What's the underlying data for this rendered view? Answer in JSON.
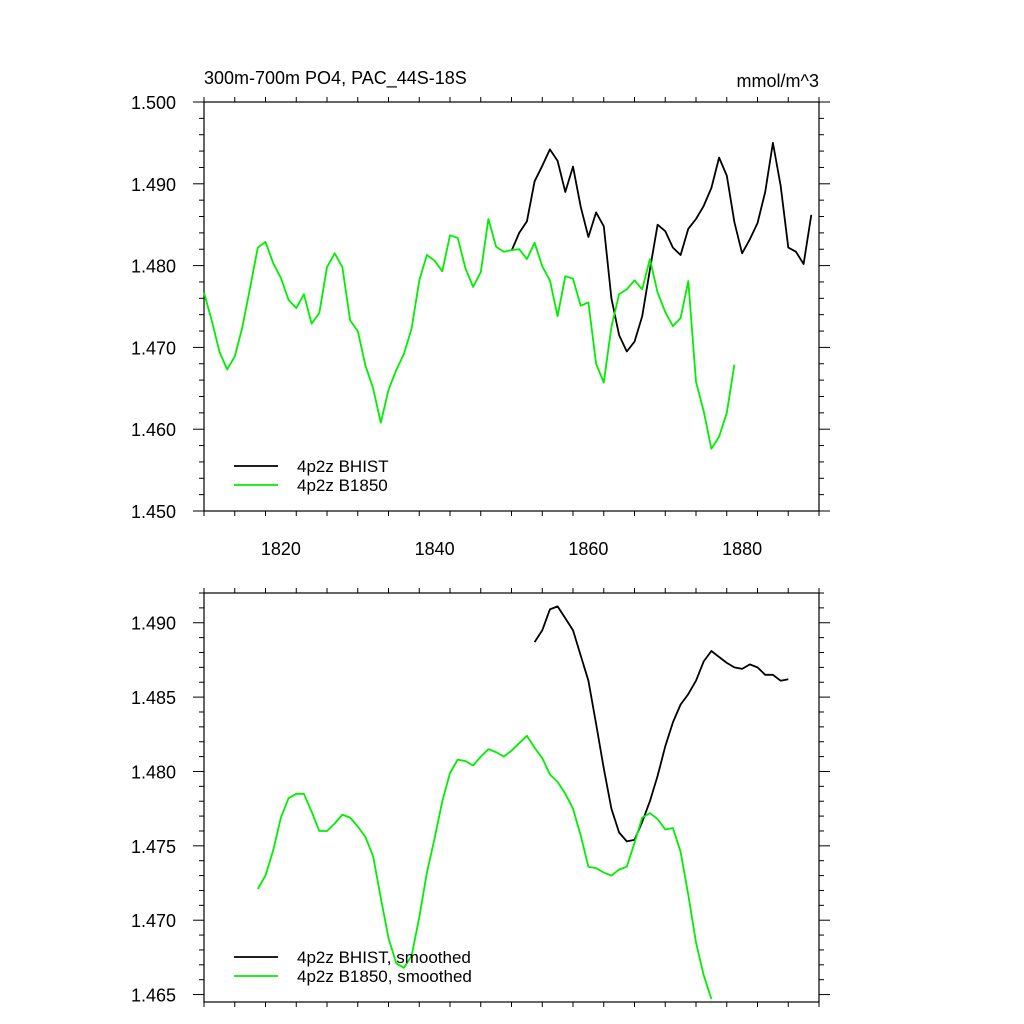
{
  "colors": {
    "bhist": "#000000",
    "b1850": "#00ee00"
  },
  "chart_data": [
    {
      "type": "line",
      "title": "300m-700m PO4, PAC_44S-18S",
      "units": "mmol/m^3",
      "xlim": [
        1810,
        1890
      ],
      "ylim": [
        1.45,
        1.5
      ],
      "x_ticks": [
        1820,
        1840,
        1860,
        1880
      ],
      "x_tick_labels": [
        "1820",
        "1840",
        "1860",
        "1880"
      ],
      "y_ticks": [
        1.45,
        1.46,
        1.47,
        1.48,
        1.49,
        1.5
      ],
      "y_tick_labels": [
        "1.450",
        "1.460",
        "1.470",
        "1.480",
        "1.490",
        "1.500"
      ],
      "legend_position": "bottom-left",
      "series": [
        {
          "name": "4p2z BHIST",
          "color": "#000000",
          "x": [
            1850,
            1851,
            1852,
            1853,
            1854,
            1855,
            1856,
            1857,
            1858,
            1859,
            1860,
            1861,
            1862,
            1863,
            1864,
            1865,
            1866,
            1867,
            1868,
            1869,
            1870,
            1871,
            1872,
            1873,
            1874,
            1875,
            1876,
            1877,
            1878,
            1879,
            1880,
            1881,
            1882,
            1883,
            1884,
            1885,
            1886,
            1887,
            1888,
            1889
          ],
          "y": [
            1.4818,
            1.484,
            1.4854,
            1.4903,
            1.4922,
            1.4942,
            1.4928,
            1.489,
            1.4921,
            1.4872,
            1.4835,
            1.4865,
            1.4848,
            1.476,
            1.4715,
            1.4695,
            1.4707,
            1.4738,
            1.4795,
            1.485,
            1.4842,
            1.4822,
            1.4813,
            1.4845,
            1.4857,
            1.4873,
            1.4895,
            1.4932,
            1.491,
            1.4853,
            1.4815,
            1.4832,
            1.4852,
            1.489,
            1.495,
            1.4898,
            1.4822,
            1.4817,
            1.4802,
            1.4862
          ]
        },
        {
          "name": "4p2z B1850",
          "color": "#00ee00",
          "x": [
            1810,
            1811,
            1812,
            1813,
            1814,
            1815,
            1816,
            1817,
            1818,
            1819,
            1820,
            1821,
            1822,
            1823,
            1824,
            1825,
            1826,
            1827,
            1828,
            1829,
            1830,
            1831,
            1832,
            1833,
            1834,
            1835,
            1836,
            1837,
            1838,
            1839,
            1840,
            1841,
            1842,
            1843,
            1844,
            1845,
            1846,
            1847,
            1848,
            1849,
            1850,
            1851,
            1852,
            1853,
            1854,
            1855,
            1856,
            1857,
            1858,
            1859,
            1860,
            1861,
            1862,
            1863,
            1864,
            1865,
            1866,
            1867,
            1868,
            1869,
            1870,
            1871,
            1872,
            1873,
            1874,
            1875,
            1876,
            1877,
            1878,
            1879
          ],
          "y": [
            1.4767,
            1.4733,
            1.4695,
            1.4673,
            1.4689,
            1.4725,
            1.4773,
            1.4822,
            1.4829,
            1.4803,
            1.4785,
            1.4758,
            1.4748,
            1.4765,
            1.4729,
            1.4742,
            1.4798,
            1.4815,
            1.4798,
            1.4733,
            1.472,
            1.4678,
            1.465,
            1.4608,
            1.4648,
            1.4672,
            1.4692,
            1.4723,
            1.4782,
            1.4813,
            1.4806,
            1.4793,
            1.4837,
            1.4834,
            1.4797,
            1.4774,
            1.4792,
            1.4857,
            1.4823,
            1.4817,
            1.4819,
            1.482,
            1.4808,
            1.4828,
            1.4799,
            1.4782,
            1.4738,
            1.4787,
            1.4784,
            1.4751,
            1.4755,
            1.468,
            1.4657,
            1.4725,
            1.4765,
            1.4771,
            1.4782,
            1.4771,
            1.4808,
            1.4767,
            1.4743,
            1.4726,
            1.4736,
            1.4781,
            1.4658,
            1.4622,
            1.4576,
            1.4591,
            1.462,
            1.4679
          ]
        }
      ]
    },
    {
      "type": "line",
      "xlim": [
        1810,
        1890
      ],
      "ylim": [
        1.4645,
        1.492
      ],
      "x_ticks": [
        1820,
        1840,
        1860,
        1880
      ],
      "y_ticks": [
        1.465,
        1.47,
        1.475,
        1.48,
        1.485,
        1.49
      ],
      "y_tick_labels": [
        "1.465",
        "1.470",
        "1.475",
        "1.480",
        "1.485",
        "1.490"
      ],
      "legend_position": "bottom-left",
      "series": [
        {
          "name": "4p2z BHIST, smoothed",
          "color": "#000000",
          "x": [
            1853,
            1854,
            1855,
            1856,
            1857,
            1858,
            1859,
            1860,
            1861,
            1862,
            1863,
            1864,
            1865,
            1866,
            1867,
            1868,
            1869,
            1870,
            1871,
            1872,
            1873,
            1874,
            1875,
            1876,
            1877,
            1878,
            1879,
            1880,
            1881,
            1882,
            1883,
            1884,
            1885,
            1886
          ],
          "y": [
            1.4887,
            1.4895,
            1.4909,
            1.4911,
            1.4903,
            1.4895,
            1.4878,
            1.4861,
            1.4832,
            1.4802,
            1.4775,
            1.4759,
            1.4753,
            1.4754,
            1.4766,
            1.478,
            1.4797,
            1.4817,
            1.4833,
            1.4845,
            1.4852,
            1.4861,
            1.4874,
            1.4881,
            1.4877,
            1.4873,
            1.487,
            1.4869,
            1.4872,
            1.487,
            1.4865,
            1.4865,
            1.4861,
            1.4862
          ]
        },
        {
          "name": "4p2z B1850, smoothed",
          "color": "#00ee00",
          "x": [
            1817,
            1818,
            1819,
            1820,
            1821,
            1822,
            1823,
            1824,
            1825,
            1826,
            1827,
            1828,
            1829,
            1830,
            1831,
            1832,
            1833,
            1834,
            1835,
            1836,
            1837,
            1838,
            1839,
            1840,
            1841,
            1842,
            1843,
            1844,
            1845,
            1846,
            1847,
            1848,
            1849,
            1850,
            1851,
            1852,
            1853,
            1854,
            1855,
            1856,
            1857,
            1858,
            1859,
            1860,
            1861,
            1862,
            1863,
            1864,
            1865,
            1866,
            1867,
            1868,
            1869,
            1870,
            1871,
            1872,
            1873,
            1874,
            1875,
            1876
          ],
          "y": [
            1.4721,
            1.473,
            1.4747,
            1.4769,
            1.4782,
            1.4785,
            1.4785,
            1.4773,
            1.476,
            1.476,
            1.4765,
            1.4771,
            1.4769,
            1.4763,
            1.4756,
            1.4743,
            1.4715,
            1.4688,
            1.4671,
            1.4668,
            1.4676,
            1.4702,
            1.4732,
            1.4755,
            1.478,
            1.4799,
            1.4808,
            1.4807,
            1.4804,
            1.481,
            1.4815,
            1.4813,
            1.481,
            1.4814,
            1.4819,
            1.4824,
            1.4816,
            1.4809,
            1.4798,
            1.4793,
            1.4785,
            1.4775,
            1.4757,
            1.4736,
            1.4735,
            1.4732,
            1.473,
            1.4734,
            1.4736,
            1.4752,
            1.4769,
            1.4772,
            1.4768,
            1.4761,
            1.4762,
            1.4746,
            1.4717,
            1.4685,
            1.4663,
            1.4647
          ]
        }
      ]
    }
  ]
}
